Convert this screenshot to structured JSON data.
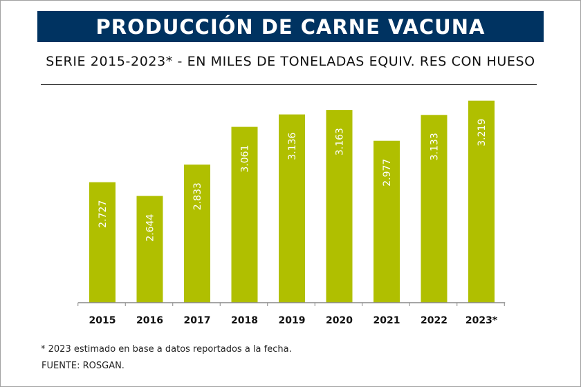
{
  "title": "PRODUCCIÓN DE CARNE VACUNA",
  "subtitle": "SERIE 2015-2023* - EN MILES DE TONELADAS EQUIV. RES CON HUESO",
  "footnote": "* 2023 estimado en base a datos reportados a la fecha.",
  "source": "FUENTE: ROSGAN.",
  "colors": {
    "banner": "#003361",
    "bar": "#b0bf00",
    "label": "#ffffff"
  },
  "chart_data": {
    "type": "bar",
    "title": "PRODUCCIÓN DE CARNE VACUNA",
    "subtitle": "SERIE 2015-2023* - EN MILES DE TONELADAS EQUIV. RES CON HUESO",
    "xlabel": "",
    "ylabel": "",
    "categories": [
      "2015",
      "2016",
      "2017",
      "2018",
      "2019",
      "2020",
      "2021",
      "2022",
      "2023*"
    ],
    "values": [
      2727,
      2644,
      2833,
      3061,
      3136,
      3163,
      2977,
      3133,
      3219
    ],
    "value_labels": [
      "2.727",
      "2.644",
      "2.833",
      "3.061",
      "3.136",
      "3.163",
      "2.977",
      "3.133",
      "3.219"
    ],
    "ylim": [
      2000,
      3250
    ],
    "grid": false,
    "legend": "none"
  }
}
